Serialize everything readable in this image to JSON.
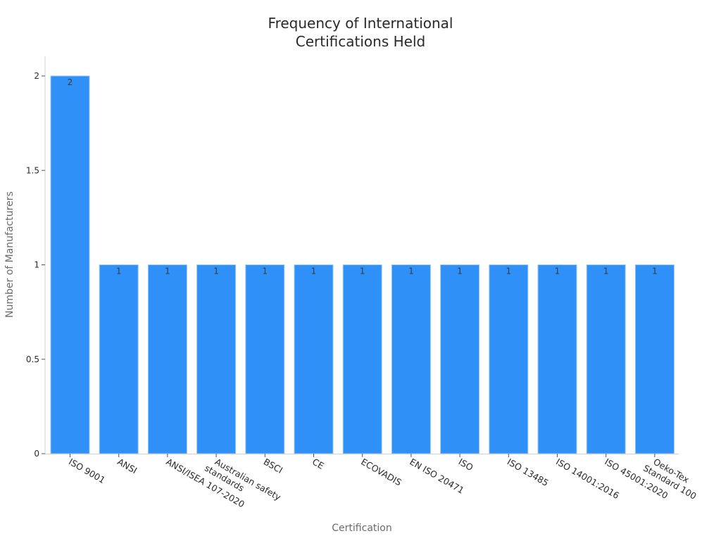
{
  "chart_data": {
    "type": "bar",
    "title_lines": [
      "Frequency of International",
      "Certifications Held"
    ],
    "xlabel": "Certification",
    "ylabel": "Number of Manufacturers",
    "categories": [
      [
        "ISO 9001"
      ],
      [
        "ANSI"
      ],
      [
        "ANSI/ISEA 107-2020"
      ],
      [
        "Australian safety",
        "standards"
      ],
      [
        "BSCI"
      ],
      [
        "CE"
      ],
      [
        "ECOVADIS"
      ],
      [
        "EN ISO 20471"
      ],
      [
        "ISO"
      ],
      [
        "ISO 13485"
      ],
      [
        "ISO 14001:2016"
      ],
      [
        "ISO 45001:2020"
      ],
      [
        "Oeko-Tex",
        "Standard 100"
      ]
    ],
    "values": [
      2,
      1,
      1,
      1,
      1,
      1,
      1,
      1,
      1,
      1,
      1,
      1,
      1
    ],
    "data_labels": [
      "2",
      "1",
      "1",
      "1",
      "1",
      "1",
      "1",
      "1",
      "1",
      "1",
      "1",
      "1",
      "1"
    ],
    "y_ticks": [
      0,
      0.5,
      1,
      1.5,
      2
    ],
    "y_tick_labels": [
      "0",
      "0.5",
      "1",
      "1.5",
      "2"
    ],
    "ylim": [
      0,
      2.1
    ],
    "grid": false,
    "bar_color": "#2F91F7",
    "bar_edge_color": "#9CC8F3"
  }
}
